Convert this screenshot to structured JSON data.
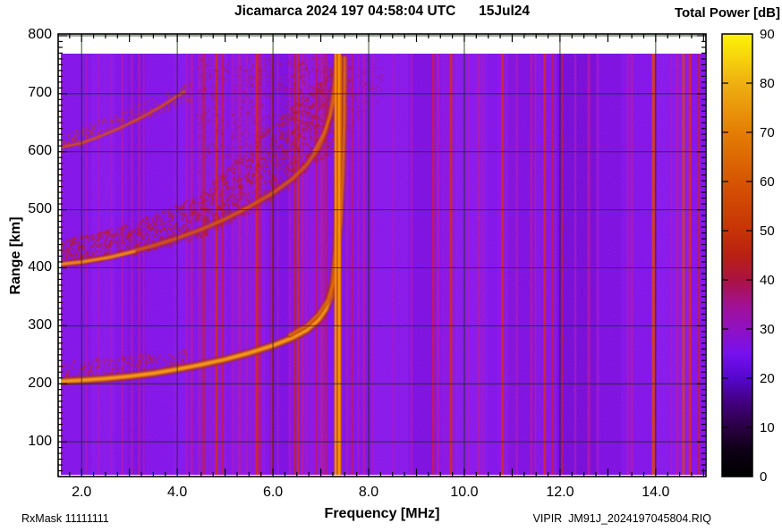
{
  "header": {
    "title": "Jicamarca 2024 197 04:58:04 UTC      15Jul24"
  },
  "colorbar": {
    "title": "Total Power [dB]",
    "tick_labels": [
      "0",
      "10",
      "20",
      "30",
      "40",
      "50",
      "60",
      "70",
      "80",
      "90"
    ],
    "tick_values": [
      0,
      10,
      20,
      30,
      40,
      50,
      60,
      70,
      80,
      90
    ],
    "min": 0,
    "max": 90,
    "stops": [
      [
        0,
        "#000000"
      ],
      [
        0.06,
        "#0e0016"
      ],
      [
        0.111,
        "#2a0042"
      ],
      [
        0.167,
        "#42007e"
      ],
      [
        0.222,
        "#5506cc"
      ],
      [
        0.26,
        "#6b0de6"
      ],
      [
        0.278,
        "#7711ee"
      ],
      [
        0.333,
        "#8f11c2"
      ],
      [
        0.389,
        "#a21192"
      ],
      [
        0.444,
        "#ab1342"
      ],
      [
        0.5,
        "#b92013"
      ],
      [
        0.556,
        "#c63306"
      ],
      [
        0.667,
        "#d65503"
      ],
      [
        0.778,
        "#e47e04"
      ],
      [
        0.889,
        "#efb011"
      ],
      [
        1,
        "#fdf406"
      ]
    ]
  },
  "axes": {
    "x_label": "Frequency [MHz]",
    "y_label": "Range [km]",
    "x_ticks": [
      {
        "v": 2,
        "label": "2.0"
      },
      {
        "v": 4,
        "label": "4.0"
      },
      {
        "v": 6,
        "label": "6.0"
      },
      {
        "v": 8,
        "label": "8.0"
      },
      {
        "v": 10,
        "label": "10.0"
      },
      {
        "v": 12,
        "label": "12.0"
      },
      {
        "v": 14,
        "label": "14.0"
      }
    ],
    "y_ticks": [
      {
        "v": 100,
        "label": "100"
      },
      {
        "v": 200,
        "label": "200"
      },
      {
        "v": 300,
        "label": "300"
      },
      {
        "v": 400,
        "label": "400"
      },
      {
        "v": 500,
        "label": "500"
      },
      {
        "v": 600,
        "label": "600"
      },
      {
        "v": 700,
        "label": "700"
      },
      {
        "v": 800,
        "label": "800"
      }
    ]
  },
  "footer": {
    "left": "RxMask 11111111",
    "right": "VIPIR  JM91J_2024197045804.RIQ"
  },
  "chart_data": {
    "type": "heatmap",
    "title": "Jicamarca 2024 197 04:58:04 UTC 15Jul24",
    "xlabel": "Frequency [MHz]",
    "ylabel": "Range [km]",
    "value_label": "Total Power [dB]",
    "value_range": [
      0,
      90
    ],
    "x_range": [
      1.51,
      15.05
    ],
    "y_range": [
      40,
      803
    ],
    "x_grid": [
      2,
      4,
      6,
      8,
      10,
      12,
      14
    ],
    "y_grid": [
      100,
      200,
      300,
      400,
      500,
      600,
      700,
      800
    ],
    "grid_on": true,
    "base_color": "#7a10ee",
    "grid_color": "#1d3117",
    "f_critical_MHz": 7.4,
    "stripe_colors": {
      "b1": "#8619f2",
      "b2": "#6d09da",
      "b2d": "#6203cc",
      "b1m": "#8e16de",
      "m": "#a413c0",
      "p": "#b013a2",
      "r": "#c11341",
      "R": "#cb2714",
      "S": "#d43c0a"
    },
    "rfi_stripes": [
      [
        2.45,
        26,
        "b1",
        0.5
      ],
      [
        3.15,
        20,
        "b2",
        0.5
      ],
      [
        4.05,
        16,
        "b1",
        0.45
      ],
      [
        4.75,
        30,
        "b1m",
        0.5
      ],
      [
        5.5,
        36,
        "b1m",
        0.5
      ],
      [
        6.15,
        24,
        "b2",
        0.45
      ],
      [
        6.8,
        30,
        "b1m",
        0.5
      ],
      [
        8.45,
        40,
        "b1",
        0.5
      ],
      [
        9.1,
        24,
        "b2",
        0.45
      ],
      [
        9.7,
        20,
        "b1m",
        0.45
      ],
      [
        10.15,
        36,
        "b1",
        0.5
      ],
      [
        10.9,
        22,
        "b1m",
        0.45
      ],
      [
        11.2,
        30,
        "b2",
        0.4
      ],
      [
        12.35,
        44,
        "b2d",
        0.55
      ],
      [
        13.05,
        24,
        "b2",
        0.45
      ],
      [
        14.35,
        40,
        "b1",
        0.5
      ],
      [
        2.1,
        2,
        "m",
        0.75
      ],
      [
        2.35,
        2,
        "m",
        0.75
      ],
      [
        2.62,
        2,
        "m",
        0.75
      ],
      [
        3.05,
        2.5,
        "m",
        0.75
      ],
      [
        3.3,
        2,
        "m",
        0.75
      ],
      [
        4.2,
        2.5,
        "m",
        0.75
      ],
      [
        4.45,
        2.5,
        "m",
        0.75
      ],
      [
        5.15,
        2,
        "m",
        0.75
      ],
      [
        5.45,
        2.5,
        "m",
        0.75
      ],
      [
        6.1,
        2,
        "m",
        0.75
      ],
      [
        6.35,
        2.5,
        "m",
        0.75
      ],
      [
        6.7,
        2,
        "m",
        0.75
      ],
      [
        7.55,
        2.5,
        "m",
        0.75
      ],
      [
        7.78,
        2,
        "m",
        0.75
      ],
      [
        8.08,
        2.5,
        "m",
        0.75
      ],
      [
        8.52,
        2,
        "m",
        0.75
      ],
      [
        8.9,
        2.5,
        "m",
        0.75
      ],
      [
        9.35,
        2,
        "m",
        0.75
      ],
      [
        10.08,
        2.5,
        "m",
        0.75
      ],
      [
        10.38,
        2,
        "m",
        0.75
      ],
      [
        11.1,
        2.5,
        "m",
        0.75
      ],
      [
        11.48,
        2,
        "m",
        0.75
      ],
      [
        12.32,
        2.5,
        "m",
        0.75
      ],
      [
        12.78,
        2,
        "m",
        0.75
      ],
      [
        13.42,
        2.5,
        "m",
        0.75
      ],
      [
        14.32,
        2,
        "m",
        0.75
      ],
      [
        14.68,
        2.5,
        "m",
        0.75
      ],
      [
        2.85,
        2.5,
        "p",
        0.7
      ],
      [
        3.2,
        2.5,
        "p",
        0.7
      ],
      [
        4.3,
        3,
        "p",
        0.8
      ],
      [
        5.3,
        3,
        "p",
        0.8
      ],
      [
        6.62,
        3,
        "p",
        0.8
      ],
      [
        7.02,
        3,
        "p",
        0.8
      ],
      [
        7.9,
        3,
        "p",
        0.8
      ],
      [
        9.45,
        3,
        "p",
        0.8
      ],
      [
        10.3,
        3,
        "p",
        0.8
      ],
      [
        11.4,
        3,
        "p",
        0.8
      ],
      [
        12.6,
        3,
        "p",
        0.8
      ],
      [
        13.5,
        3,
        "p",
        0.8
      ],
      [
        14.45,
        3,
        "p",
        0.8
      ],
      [
        4.55,
        2.5,
        "r",
        0.85
      ],
      [
        4.95,
        2.5,
        "r",
        0.85
      ],
      [
        5.72,
        2.5,
        "r",
        0.85
      ],
      [
        5.98,
        2.5,
        "r",
        0.85
      ],
      [
        6.45,
        2.5,
        "r",
        0.85
      ],
      [
        6.9,
        2.5,
        "r",
        0.85
      ],
      [
        7.1,
        2.5,
        "r",
        0.85
      ],
      [
        7.65,
        2.5,
        "r",
        0.85
      ],
      [
        9.35,
        2.5,
        "r",
        0.85
      ],
      [
        11.85,
        2.5,
        "r",
        0.85
      ],
      [
        12.05,
        2,
        "r",
        0.8
      ],
      [
        14.9,
        2.5,
        "r",
        0.85
      ],
      [
        4.82,
        3,
        "R",
        0.9
      ],
      [
        5.66,
        3,
        "R",
        0.9
      ],
      [
        6.52,
        2.5,
        "R",
        0.9
      ],
      [
        9.72,
        3,
        "R",
        0.9
      ],
      [
        10.8,
        3,
        "R",
        0.9
      ],
      [
        11.68,
        3,
        "R",
        0.9
      ],
      [
        14.72,
        3,
        "R",
        0.9
      ],
      [
        13.95,
        3.5,
        "S",
        0.92
      ],
      [
        14.58,
        3,
        "S",
        0.85
      ]
    ],
    "strong_lines": [
      {
        "f": 7.31,
        "w": 3.2
      },
      {
        "f": 7.385,
        "w": 4.6
      }
    ],
    "strong_line_colors": {
      "base": "#e06505",
      "core": "#f0940a"
    },
    "traces": [
      {
        "name": "F-trace O-mode 1st hop",
        "points": [
          [
            1.52,
            204
          ],
          [
            2,
            206
          ],
          [
            2.5,
            209
          ],
          [
            3,
            213
          ],
          [
            3.5,
            218
          ],
          [
            4,
            225
          ],
          [
            4.5,
            233
          ],
          [
            5,
            242
          ],
          [
            5.5,
            253
          ],
          [
            6,
            266
          ],
          [
            6.4,
            279
          ],
          [
            6.7,
            292
          ],
          [
            6.95,
            310
          ],
          [
            7.1,
            328
          ],
          [
            7.2,
            350
          ],
          [
            7.27,
            382
          ],
          [
            7.32,
            425
          ],
          [
            7.35,
            480
          ],
          [
            7.37,
            550
          ],
          [
            7.385,
            640
          ],
          [
            7.39,
            762
          ]
        ],
        "layers": [
          [
            "#9e2a10",
            9,
            0.7
          ],
          [
            "#df6b0c",
            5.5,
            0.92
          ],
          [
            "#f5a01b",
            2.6,
            0.95
          ]
        ]
      },
      {
        "name": "F-trace X-mode 1st hop",
        "points": [
          [
            6.35,
            284
          ],
          [
            6.7,
            300
          ],
          [
            6.95,
            320
          ],
          [
            7.15,
            345
          ],
          [
            7.28,
            378
          ],
          [
            7.36,
            425
          ],
          [
            7.42,
            485
          ],
          [
            7.46,
            560
          ],
          [
            7.49,
            650
          ],
          [
            7.5,
            762
          ]
        ],
        "layers": [
          [
            "#a62c10",
            6,
            0.6
          ],
          [
            "#e0700e",
            3,
            0.85
          ]
        ]
      },
      {
        "name": "F-trace 2nd hop",
        "points": [
          [
            1.52,
            406
          ],
          [
            2,
            410
          ],
          [
            2.5,
            417
          ],
          [
            3,
            427
          ],
          [
            3.5,
            438
          ],
          [
            4,
            451
          ],
          [
            4.5,
            466
          ],
          [
            5,
            484
          ],
          [
            5.5,
            505
          ],
          [
            6,
            529
          ],
          [
            6.4,
            553
          ],
          [
            6.7,
            577
          ],
          [
            6.95,
            606
          ],
          [
            7.1,
            635
          ],
          [
            7.2,
            668
          ],
          [
            7.28,
            710
          ],
          [
            7.33,
            762
          ]
        ],
        "layers": [
          [
            "#ae2413",
            7,
            0.5
          ],
          [
            "#d85e10",
            3.5,
            0.8
          ]
        ]
      },
      {
        "name": "F-trace 2nd hop bright start",
        "points": [
          [
            1.52,
            406
          ],
          [
            2,
            410
          ],
          [
            2.6,
            418
          ],
          [
            3.1,
            428
          ]
        ],
        "layers": [
          [
            "#ef9018",
            3,
            0.9
          ]
        ]
      },
      {
        "name": "F-trace 2nd hop X upper",
        "points": [
          [
            6.85,
            600
          ],
          [
            7.05,
            630
          ],
          [
            7.2,
            662
          ],
          [
            7.3,
            700
          ],
          [
            7.36,
            745
          ],
          [
            7.38,
            762
          ]
        ],
        "layers": [
          [
            "#e06d10",
            2.2,
            0.85
          ]
        ]
      },
      {
        "name": "F-trace 3rd hop",
        "points": [
          [
            1.52,
            607
          ],
          [
            2,
            615
          ],
          [
            2.4,
            627
          ],
          [
            2.8,
            641
          ],
          [
            3.2,
            657
          ],
          [
            3.6,
            675
          ],
          [
            3.9,
            691
          ],
          [
            4.15,
            704
          ]
        ],
        "layers": [
          [
            "#c44012",
            3.5,
            0.65
          ],
          [
            "#dd5c0e",
            1.8,
            0.7
          ]
        ]
      }
    ],
    "clouds": [
      [
        1.6,
        4.2,
        206,
        238,
        226,
        258,
        260,
        "#c02218",
        0.45,
        1.6
      ],
      [
        1.52,
        3.0,
        398,
        445,
        420,
        475,
        420,
        "#bb1c22",
        0.5,
        1.8
      ],
      [
        3.0,
        4.5,
        420,
        475,
        450,
        525,
        420,
        "#bb1c22",
        0.5,
        1.8
      ],
      [
        4.5,
        6.0,
        450,
        530,
        515,
        645,
        600,
        "#bb1c22",
        0.5,
        1.8
      ],
      [
        6.0,
        7.45,
        515,
        645,
        615,
        762,
        650,
        "#bb1c22",
        0.5,
        1.8
      ],
      [
        4.4,
        6.2,
        555,
        762,
        595,
        762,
        420,
        "#b01a30",
        0.33,
        1.7
      ],
      [
        6.2,
        7.6,
        595,
        762,
        640,
        762,
        450,
        "#b01a30",
        0.38,
        1.7
      ],
      [
        7.6,
        8.3,
        640,
        762,
        690,
        762,
        120,
        "#a81840",
        0.25,
        1.6
      ],
      [
        1.52,
        4.3,
        595,
        625,
        685,
        720,
        300,
        "#c03318",
        0.4,
        1.6
      ],
      [
        1.51,
        15.0,
        45,
        762,
        45,
        762,
        700,
        "#9c16a8",
        0.18,
        1.5
      ]
    ]
  }
}
